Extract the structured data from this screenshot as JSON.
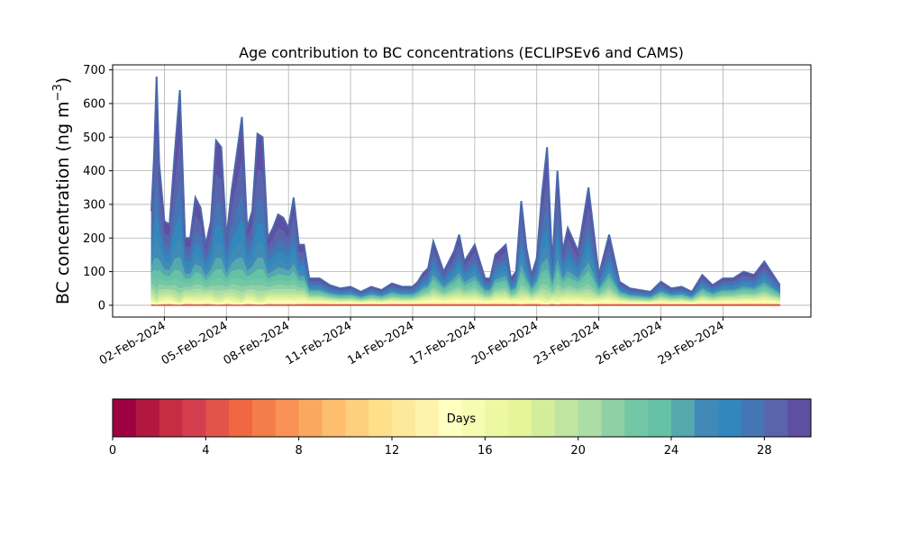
{
  "chart_data": {
    "type": "area",
    "title": "Age contribution to BC concentrations (ECLIPSEv6 and CAMS)",
    "ylabel": "BC concentration (ng m⁻³)",
    "ylabel_main": "BC concentration (ng m",
    "ylabel_sup": "−3",
    "ylabel_end": ")",
    "xlabel": "",
    "ylim": [
      -35,
      715
    ],
    "xlim": [
      "2024-01-30T12:00",
      "2024-03-04T06:00"
    ],
    "y_ticks": [
      0,
      100,
      200,
      300,
      400,
      500,
      600,
      700
    ],
    "x_ticks": [
      {
        "date": "2024-02-02",
        "label": "02-Feb-2024"
      },
      {
        "date": "2024-02-05",
        "label": "05-Feb-2024"
      },
      {
        "date": "2024-02-08",
        "label": "08-Feb-2024"
      },
      {
        "date": "2024-02-11",
        "label": "11-Feb-2024"
      },
      {
        "date": "2024-02-14",
        "label": "14-Feb-2024"
      },
      {
        "date": "2024-02-17",
        "label": "17-Feb-2024"
      },
      {
        "date": "2024-02-20",
        "label": "20-Feb-2024"
      },
      {
        "date": "2024-02-23",
        "label": "23-Feb-2024"
      },
      {
        "date": "2024-02-26",
        "label": "26-Feb-2024"
      },
      {
        "date": "2024-02-29",
        "label": "29-Feb-2024"
      }
    ],
    "grid": true,
    "x": [
      "2024-02-01T09:00",
      "2024-02-01T12:00",
      "2024-02-01T15:00",
      "2024-02-01T18:00",
      "2024-02-02T00:00",
      "2024-02-02T06:00",
      "2024-02-02T12:00",
      "2024-02-02T18:00",
      "2024-02-03T00:00",
      "2024-02-03T06:00",
      "2024-02-03T12:00",
      "2024-02-03T18:00",
      "2024-02-04T00:00",
      "2024-02-04T06:00",
      "2024-02-04T12:00",
      "2024-02-04T18:00",
      "2024-02-05T00:00",
      "2024-02-05T06:00",
      "2024-02-05T12:00",
      "2024-02-05T18:00",
      "2024-02-06T00:00",
      "2024-02-06T06:00",
      "2024-02-06T12:00",
      "2024-02-06T18:00",
      "2024-02-07T00:00",
      "2024-02-07T06:00",
      "2024-02-07T12:00",
      "2024-02-07T18:00",
      "2024-02-08T00:00",
      "2024-02-08T06:00",
      "2024-02-08T12:00",
      "2024-02-08T18:00",
      "2024-02-09T00:00",
      "2024-02-09T12:00",
      "2024-02-10T00:00",
      "2024-02-10T12:00",
      "2024-02-11T00:00",
      "2024-02-11T12:00",
      "2024-02-12T00:00",
      "2024-02-12T12:00",
      "2024-02-13T00:00",
      "2024-02-13T12:00",
      "2024-02-14T00:00",
      "2024-02-14T06:00",
      "2024-02-14T12:00",
      "2024-02-14T18:00",
      "2024-02-15T00:00",
      "2024-02-15T12:00",
      "2024-02-16T00:00",
      "2024-02-16T06:00",
      "2024-02-16T12:00",
      "2024-02-17T00:00",
      "2024-02-17T12:00",
      "2024-02-17T18:00",
      "2024-02-18T00:00",
      "2024-02-18T12:00",
      "2024-02-18T18:00",
      "2024-02-19T00:00",
      "2024-02-19T06:00",
      "2024-02-19T12:00",
      "2024-02-19T18:00",
      "2024-02-20T00:00",
      "2024-02-20T06:00",
      "2024-02-20T12:00",
      "2024-02-20T18:00",
      "2024-02-21T00:00",
      "2024-02-21T06:00",
      "2024-02-21T12:00",
      "2024-02-22T00:00",
      "2024-02-22T12:00",
      "2024-02-23T00:00",
      "2024-02-23T12:00",
      "2024-02-24T00:00",
      "2024-02-24T12:00",
      "2024-02-25T00:00",
      "2024-02-25T12:00",
      "2024-02-26T00:00",
      "2024-02-26T12:00",
      "2024-02-27T00:00",
      "2024-02-27T12:00",
      "2024-02-28T00:00",
      "2024-02-28T12:00",
      "2024-02-29T00:00",
      "2024-02-29T12:00",
      "2024-03-01T00:00",
      "2024-03-01T12:00",
      "2024-03-02T00:00",
      "2024-03-02T18:00"
    ],
    "values": [
      280,
      440,
      680,
      420,
      250,
      240,
      450,
      640,
      200,
      200,
      320,
      290,
      180,
      250,
      490,
      470,
      200,
      340,
      450,
      560,
      230,
      280,
      510,
      500,
      200,
      230,
      270,
      260,
      230,
      320,
      180,
      180,
      80,
      80,
      60,
      50,
      55,
      40,
      55,
      45,
      65,
      55,
      55,
      70,
      95,
      110,
      190,
      100,
      160,
      210,
      130,
      180,
      80,
      80,
      150,
      180,
      80,
      100,
      310,
      170,
      90,
      140,
      330,
      470,
      120,
      400,
      160,
      230,
      160,
      350,
      90,
      210,
      70,
      50,
      45,
      40,
      70,
      50,
      55,
      40,
      90,
      60,
      80,
      80,
      100,
      90,
      130,
      60
    ],
    "colorbar": {
      "label": "Days",
      "min": 0,
      "max": 30,
      "ticks": [
        0,
        4,
        8,
        12,
        16,
        20,
        24,
        28
      ],
      "colors": [
        "#9e0142",
        "#b2183e",
        "#c62d44",
        "#d53e4f",
        "#e25449",
        "#f06744",
        "#f57d4a",
        "#f99355",
        "#fba85f",
        "#fdbe6e",
        "#fdcf7f",
        "#fee08b",
        "#fee99a",
        "#fff2ab",
        "#ffffbf",
        "#f7fcb3",
        "#edf8a2",
        "#e6f598",
        "#d4ed9b",
        "#bfe5a0",
        "#abdda4",
        "#8fd1a4",
        "#73c6a6",
        "#66c2a5",
        "#55a8ae",
        "#418ab8",
        "#3288bd",
        "#4575b4",
        "#5a64ac",
        "#5e4fa2"
      ]
    }
  }
}
